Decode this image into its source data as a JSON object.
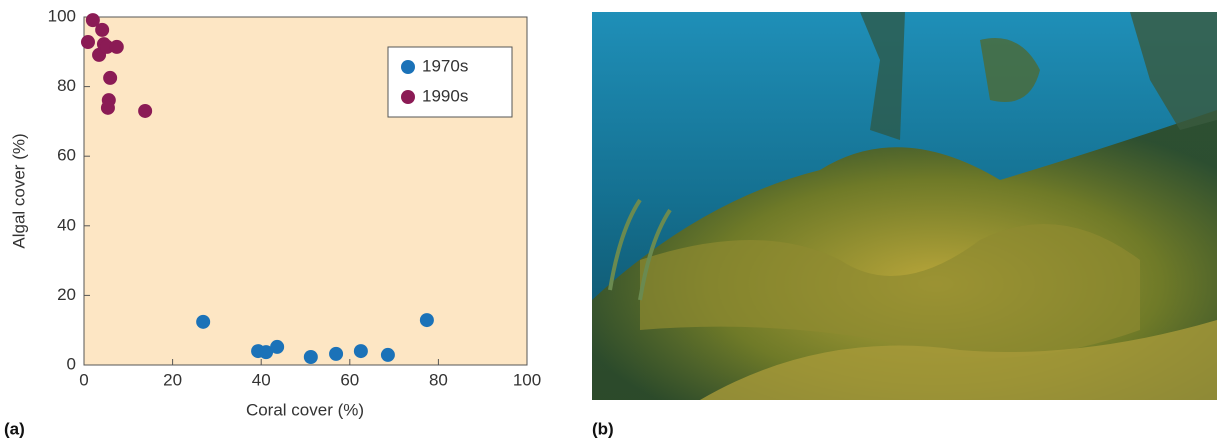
{
  "chart_data": {
    "type": "scatter",
    "xlabel": "Coral cover (%)",
    "ylabel": "Algal cover (%)",
    "xlim": [
      0,
      100
    ],
    "ylim": [
      0,
      100
    ],
    "xticks": [
      0,
      20,
      40,
      60,
      80,
      100
    ],
    "yticks": [
      0,
      20,
      40,
      60,
      80,
      100
    ],
    "legend": "upper right",
    "series": [
      {
        "name": "1970s",
        "color": "#1b72b8",
        "x": [
          26.9,
          39.3,
          41.1,
          43.6,
          51.2,
          56.9,
          62.5,
          68.6,
          77.4
        ],
        "values": [
          12.4,
          4.0,
          3.7,
          5.2,
          2.3,
          3.2,
          4.0,
          2.9,
          12.9
        ]
      },
      {
        "name": "1990s",
        "color": "#8b1b55",
        "x": [
          0.9,
          2.0,
          4.1,
          4.5,
          3.4,
          5.2,
          7.4,
          5.9,
          5.6,
          5.4,
          13.8
        ],
        "values": [
          92.8,
          99.1,
          96.3,
          92.2,
          89.1,
          91.4,
          91.4,
          82.5,
          76.1,
          73.9,
          73.0
        ]
      }
    ]
  },
  "panel_labels": [
    "(a)",
    "(b)"
  ]
}
